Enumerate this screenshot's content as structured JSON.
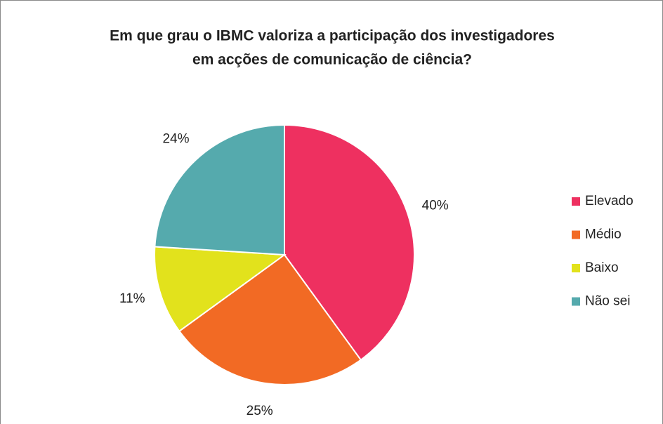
{
  "chart_data": {
    "type": "pie",
    "title": [
      "Em que grau o IBMC valoriza a participação dos investigadores",
      "em acções de comunicação de ciência?"
    ],
    "categories": [
      "Elevado",
      "Médio",
      "Baixo",
      "Não sei"
    ],
    "values": [
      40,
      25,
      11,
      24
    ],
    "value_labels": [
      "40%",
      "25%",
      "11%",
      "24%"
    ],
    "colors": [
      "#ee3060",
      "#f26a24",
      "#e2e21c",
      "#55aaad"
    ],
    "legend": "right"
  }
}
